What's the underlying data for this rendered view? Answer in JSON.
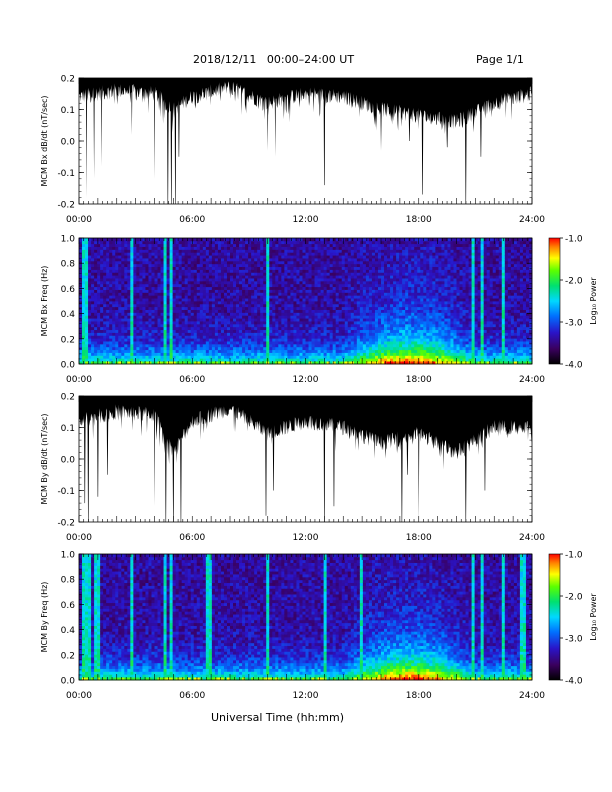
{
  "header": {
    "title": "2018/12/11   00:00–24:00 UT",
    "page": "Page 1/1"
  },
  "footer": {
    "xlabel": "Universal Time (hh:mm)"
  },
  "chart_data": [
    {
      "type": "area",
      "id": "bx_dbdt",
      "ylabel": "MCM Bx dB/dt (nT/sec)",
      "ylim": [
        -0.2,
        0.2
      ],
      "xlim_hours": [
        0,
        24
      ],
      "yticks": [
        "-0.2",
        "-0.1",
        "0.0",
        "0.1",
        "0.2"
      ],
      "xticks": [
        "00:00",
        "06:00",
        "12:00",
        "18:00",
        "24:00"
      ],
      "fill_color": "#000000",
      "series": [
        {
          "baseline_hours": [
            0,
            2,
            4,
            5,
            6,
            8,
            10,
            12,
            14,
            16,
            18,
            20,
            22,
            24
          ],
          "baseline_values": [
            0.14,
            0.16,
            0.15,
            0.1,
            0.14,
            0.17,
            0.12,
            0.15,
            0.14,
            0.1,
            0.08,
            0.06,
            0.12,
            0.15
          ],
          "spike_hours": [
            0.4,
            0.8,
            1.2,
            2.8,
            4.0,
            4.7,
            4.9,
            5.1,
            5.3,
            10.0,
            10.4,
            13.0,
            16.0,
            17.5,
            18.2,
            19.5,
            20.5,
            21.3
          ],
          "spike_minima": [
            -0.18,
            -0.12,
            -0.08,
            0.02,
            -0.12,
            -0.2,
            -0.2,
            -0.2,
            -0.05,
            -0.03,
            -0.05,
            -0.14,
            -0.03,
            0.0,
            -0.17,
            -0.02,
            -0.2,
            -0.05
          ]
        }
      ]
    },
    {
      "type": "heatmap",
      "id": "bx_freq",
      "ylabel": "MCM Bx Freq (Hz)",
      "ylim": [
        0.0,
        1.0
      ],
      "xlim_hours": [
        0,
        24
      ],
      "yticks": [
        "0.0",
        "0.2",
        "0.4",
        "0.6",
        "0.8",
        "1.0"
      ],
      "xticks": [
        "00:00",
        "06:00",
        "12:00",
        "18:00",
        "24:00"
      ],
      "colorbar": {
        "label": "Log₁₀ Power",
        "range": [
          -4.0,
          -1.0
        ],
        "ticks": [
          "-1.0",
          "-2.0",
          "-3.0",
          "-4.0"
        ]
      },
      "stripe_hours": [
        0.3,
        2.8,
        4.6,
        4.9,
        10.0,
        20.9,
        21.4,
        22.5
      ],
      "enhancement_hours": [
        14,
        21
      ]
    },
    {
      "type": "area",
      "id": "by_dbdt",
      "ylabel": "MCM By dB/dt (nT/sec)",
      "ylim": [
        -0.2,
        0.2
      ],
      "xlim_hours": [
        0,
        24
      ],
      "yticks": [
        "-0.2",
        "-0.1",
        "0.0",
        "0.1",
        "0.2"
      ],
      "xticks": [
        "00:00",
        "06:00",
        "12:00",
        "18:00",
        "24:00"
      ],
      "fill_color": "#000000",
      "series": [
        {
          "baseline_hours": [
            0,
            2,
            4,
            5,
            6,
            8,
            10,
            12,
            14,
            16,
            18,
            20,
            22,
            24
          ],
          "baseline_values": [
            0.12,
            0.15,
            0.14,
            0.02,
            0.12,
            0.16,
            0.08,
            0.12,
            0.1,
            0.05,
            0.08,
            0.02,
            0.1,
            0.1
          ],
          "spike_hours": [
            0.3,
            0.5,
            1.0,
            1.5,
            4.0,
            4.6,
            5.0,
            5.4,
            9.9,
            10.3,
            13.0,
            13.5,
            17.1,
            17.4,
            18.0,
            20.5,
            21.5
          ],
          "spike_minima": [
            -0.14,
            -0.2,
            -0.12,
            -0.05,
            -0.15,
            -0.2,
            -0.2,
            -0.2,
            -0.18,
            -0.1,
            -0.2,
            -0.15,
            -0.2,
            -0.05,
            -0.2,
            -0.2,
            -0.1
          ]
        }
      ]
    },
    {
      "type": "heatmap",
      "id": "by_freq",
      "ylabel": "MCM By Freq (Hz)",
      "ylim": [
        0.0,
        1.0
      ],
      "xlim_hours": [
        0,
        24
      ],
      "yticks": [
        "0.0",
        "0.2",
        "0.4",
        "0.6",
        "0.8",
        "1.0"
      ],
      "xticks": [
        "00:00",
        "06:00",
        "12:00",
        "18:00",
        "24:00"
      ],
      "colorbar": {
        "label": "Log₁₀ Power",
        "range": [
          -4.0,
          -1.0
        ],
        "ticks": [
          "-1.0",
          "-2.0",
          "-3.0",
          "-4.0"
        ]
      },
      "stripe_hours": [
        0.3,
        0.5,
        0.9,
        1.0,
        2.8,
        4.6,
        4.9,
        6.9,
        10.0,
        13.0,
        15.0,
        20.9,
        21.4,
        22.5,
        23.5
      ],
      "enhancement_hours": [
        14,
        21
      ]
    }
  ]
}
